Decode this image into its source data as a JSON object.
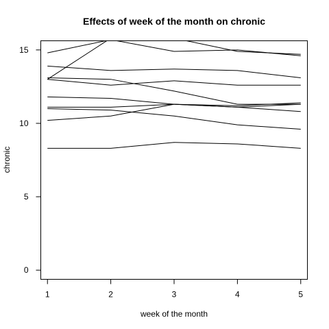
{
  "chart_data": {
    "type": "line",
    "title": "Effects of week of the month on chronic",
    "xlabel": "week of the month",
    "ylabel": "chronic",
    "x": [
      1,
      2,
      3,
      4,
      5
    ],
    "x_ticks": [
      "1",
      "2",
      "3",
      "4",
      "5"
    ],
    "y_ticks": [
      "0",
      "5",
      "10",
      "15"
    ],
    "xlim": [
      0.9,
      5.1
    ],
    "ylim": [
      -0.6,
      15.6
    ],
    "grid": false,
    "colors": {
      "line": "#000000",
      "axis": "#000000",
      "background": "#ffffff"
    },
    "series": [
      {
        "values": [
          14.8,
          15.7,
          14.9,
          15.0,
          14.6
        ]
      },
      {
        "values": [
          13.0,
          15.8,
          15.8,
          14.9,
          14.7
        ]
      },
      {
        "values": [
          13.9,
          13.6,
          13.7,
          13.6,
          13.1
        ]
      },
      {
        "values": [
          13.1,
          13.0,
          12.2,
          11.3,
          11.3
        ]
      },
      {
        "values": [
          13.0,
          12.6,
          12.9,
          12.6,
          12.6
        ]
      },
      {
        "values": [
          11.8,
          11.7,
          11.3,
          11.1,
          10.8
        ]
      },
      {
        "values": [
          11.1,
          11.1,
          11.3,
          11.2,
          11.4
        ]
      },
      {
        "values": [
          11.0,
          10.9,
          10.5,
          9.9,
          9.6
        ]
      },
      {
        "values": [
          10.2,
          10.5,
          11.3,
          11.1,
          11.3
        ]
      },
      {
        "values": [
          8.3,
          8.3,
          8.7,
          8.6,
          8.3
        ]
      }
    ]
  }
}
